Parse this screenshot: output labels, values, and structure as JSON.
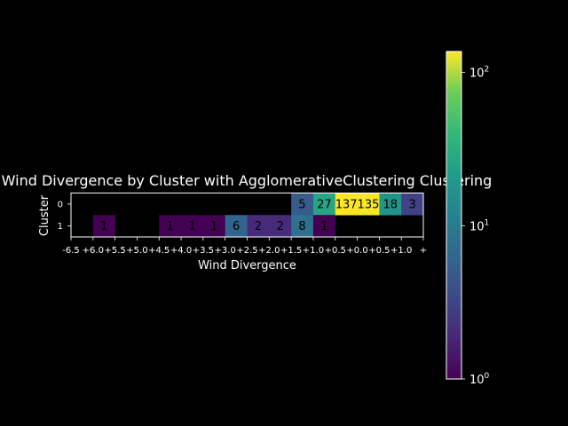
{
  "chart_data": {
    "type": "heatmap",
    "title": "Wind Divergence by Cluster with AgglomerativeClustering Clustering",
    "xlabel": "Wind Divergence",
    "ylabel": "Cluster",
    "x_tick_labels": [
      "-6.5",
      "+6.0",
      "+5.5",
      "+5.0",
      "+4.5",
      "+4.0",
      "+3.5",
      "+3.0",
      "+2.5",
      "+2.0",
      "+1.5",
      "+1.0",
      "+0.5",
      "+0.0",
      "+0.5",
      "+1.0",
      "+"
    ],
    "y_categories": [
      "0",
      "1"
    ],
    "x_bins": 16,
    "rows": [
      [
        null,
        null,
        null,
        null,
        null,
        null,
        null,
        null,
        null,
        null,
        5,
        27,
        137,
        135,
        18,
        3
      ],
      [
        null,
        1,
        null,
        null,
        1,
        1,
        1,
        6,
        2,
        2,
        8,
        1,
        null,
        null,
        null,
        null
      ]
    ],
    "colorbar": {
      "scale": "log",
      "colormap": "viridis",
      "range": [
        1,
        137
      ],
      "tick_labels": [
        "10^0",
        "10^1",
        "10^2"
      ],
      "tick_values": [
        1,
        10,
        100
      ]
    },
    "grid": false,
    "colors": {
      "background": "#000000",
      "text": "#ffffff",
      "annotation_text": "#000000"
    }
  }
}
